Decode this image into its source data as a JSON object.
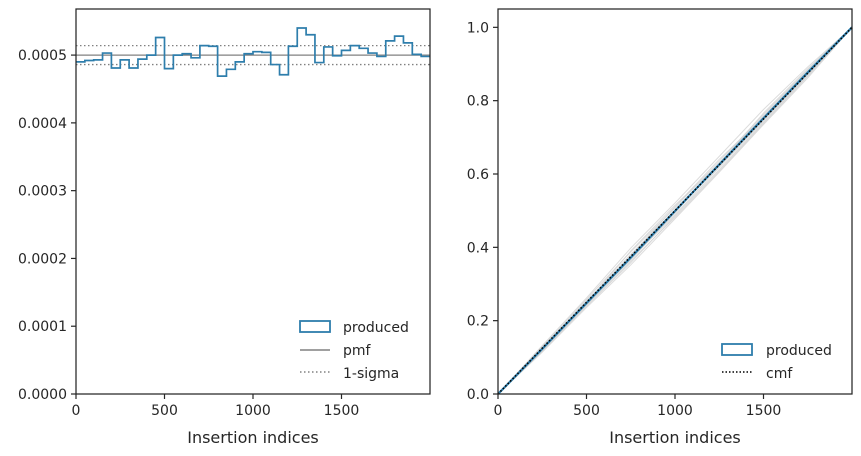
{
  "colors": {
    "produced": "#2e7eac",
    "pmf": "#808080",
    "sigma": "#808080",
    "cmf": "#000000",
    "spaghetti": "#d3d3d3",
    "axes": "#262626"
  },
  "chart_data": [
    {
      "type": "step",
      "xlabel": "Insertion indices",
      "ylabel": "",
      "xlim": [
        0,
        2000
      ],
      "ylim": [
        0,
        0.000568
      ],
      "xticks": [
        0,
        500,
        1000,
        1500
      ],
      "xtick_labels": [
        "0",
        "500",
        "1000",
        "1500"
      ],
      "yticks": [
        0.0,
        0.0001,
        0.0002,
        0.0003,
        0.0004,
        0.0005
      ],
      "ytick_labels": [
        "0.0000",
        "0.0001",
        "0.0002",
        "0.0003",
        "0.0004",
        "0.0005"
      ],
      "bin_width": 50,
      "series": [
        {
          "name": "produced",
          "style": "step",
          "bin_edges": [
            0,
            50,
            100,
            150,
            200,
            250,
            300,
            350,
            400,
            450,
            500,
            550,
            600,
            650,
            700,
            750,
            800,
            850,
            900,
            950,
            1000,
            1050,
            1100,
            1150,
            1200,
            1250,
            1300,
            1350,
            1400,
            1450,
            1500,
            1550,
            1600,
            1650,
            1700,
            1750,
            1800,
            1850,
            1900,
            1950,
            2000
          ],
          "values": [
            0.00049,
            0.000492,
            0.000493,
            0.000503,
            0.000481,
            0.000493,
            0.000481,
            0.000494,
            0.0005,
            0.000526,
            0.00048,
            0.0005,
            0.000502,
            0.000496,
            0.000514,
            0.000513,
            0.000469,
            0.000479,
            0.00049,
            0.000502,
            0.000505,
            0.000504,
            0.000486,
            0.000471,
            0.000513,
            0.00054,
            0.00053,
            0.000489,
            0.000512,
            0.000499,
            0.000507,
            0.000514,
            0.00051,
            0.000503,
            0.000498,
            0.000521,
            0.000528,
            0.000518,
            0.000501,
            0.000498
          ]
        },
        {
          "name": "pmf",
          "style": "hline",
          "y": 0.0005
        },
        {
          "name": "1-sigma",
          "style": "hline-pair",
          "y": [
            0.000486,
            0.000514
          ]
        }
      ],
      "legend": {
        "position": "lower right",
        "entries": [
          "produced",
          "pmf",
          "1-sigma"
        ]
      }
    },
    {
      "type": "line",
      "xlabel": "Insertion indices",
      "ylabel": "",
      "xlim": [
        0,
        2000
      ],
      "ylim": [
        0,
        1.05
      ],
      "xticks": [
        0,
        500,
        1000,
        1500
      ],
      "xtick_labels": [
        "0",
        "500",
        "1000",
        "1500"
      ],
      "yticks": [
        0.0,
        0.2,
        0.4,
        0.6,
        0.8,
        1.0
      ],
      "ytick_labels": [
        "0.0",
        "0.2",
        "0.4",
        "0.6",
        "0.8",
        "1.0"
      ],
      "series": [
        {
          "name": "produced",
          "style": "line",
          "x": [
            0,
            250,
            500,
            750,
            1000,
            1250,
            1500,
            1750,
            2000
          ],
          "y": [
            0.0,
            0.123,
            0.248,
            0.372,
            0.499,
            0.626,
            0.752,
            0.877,
            1.0
          ]
        },
        {
          "name": "cmf",
          "style": "dotted",
          "x": [
            0,
            2000
          ],
          "y": [
            0.0,
            1.0
          ]
        }
      ],
      "background_samples": {
        "x": [
          0,
          250,
          500,
          750,
          1000,
          1250,
          1500,
          1750,
          2000
        ],
        "ys": [
          [
            0.0,
            0.128,
            0.258,
            0.388,
            0.508,
            0.635,
            0.762,
            0.884,
            1.0
          ],
          [
            0.0,
            0.118,
            0.24,
            0.358,
            0.486,
            0.612,
            0.741,
            0.868,
            1.0
          ],
          [
            0.0,
            0.132,
            0.262,
            0.398,
            0.521,
            0.648,
            0.776,
            0.892,
            1.0
          ],
          [
            0.0,
            0.114,
            0.236,
            0.352,
            0.478,
            0.605,
            0.735,
            0.862,
            1.0
          ],
          [
            0.0,
            0.124,
            0.251,
            0.381,
            0.502,
            0.622,
            0.748,
            0.873,
            1.0
          ],
          [
            0.0,
            0.121,
            0.246,
            0.366,
            0.494,
            0.63,
            0.758,
            0.881,
            1.0
          ],
          [
            0.0,
            0.127,
            0.244,
            0.377,
            0.511,
            0.64,
            0.755,
            0.879,
            1.0
          ],
          [
            0.0,
            0.119,
            0.255,
            0.369,
            0.489,
            0.618,
            0.745,
            0.871,
            1.0
          ],
          [
            0.0,
            0.13,
            0.249,
            0.39,
            0.515,
            0.628,
            0.766,
            0.887,
            1.0
          ],
          [
            0.0,
            0.116,
            0.241,
            0.362,
            0.482,
            0.608,
            0.738,
            0.866,
            1.0
          ]
        ]
      },
      "legend": {
        "position": "lower right",
        "entries": [
          "produced",
          "cmf"
        ]
      }
    }
  ]
}
